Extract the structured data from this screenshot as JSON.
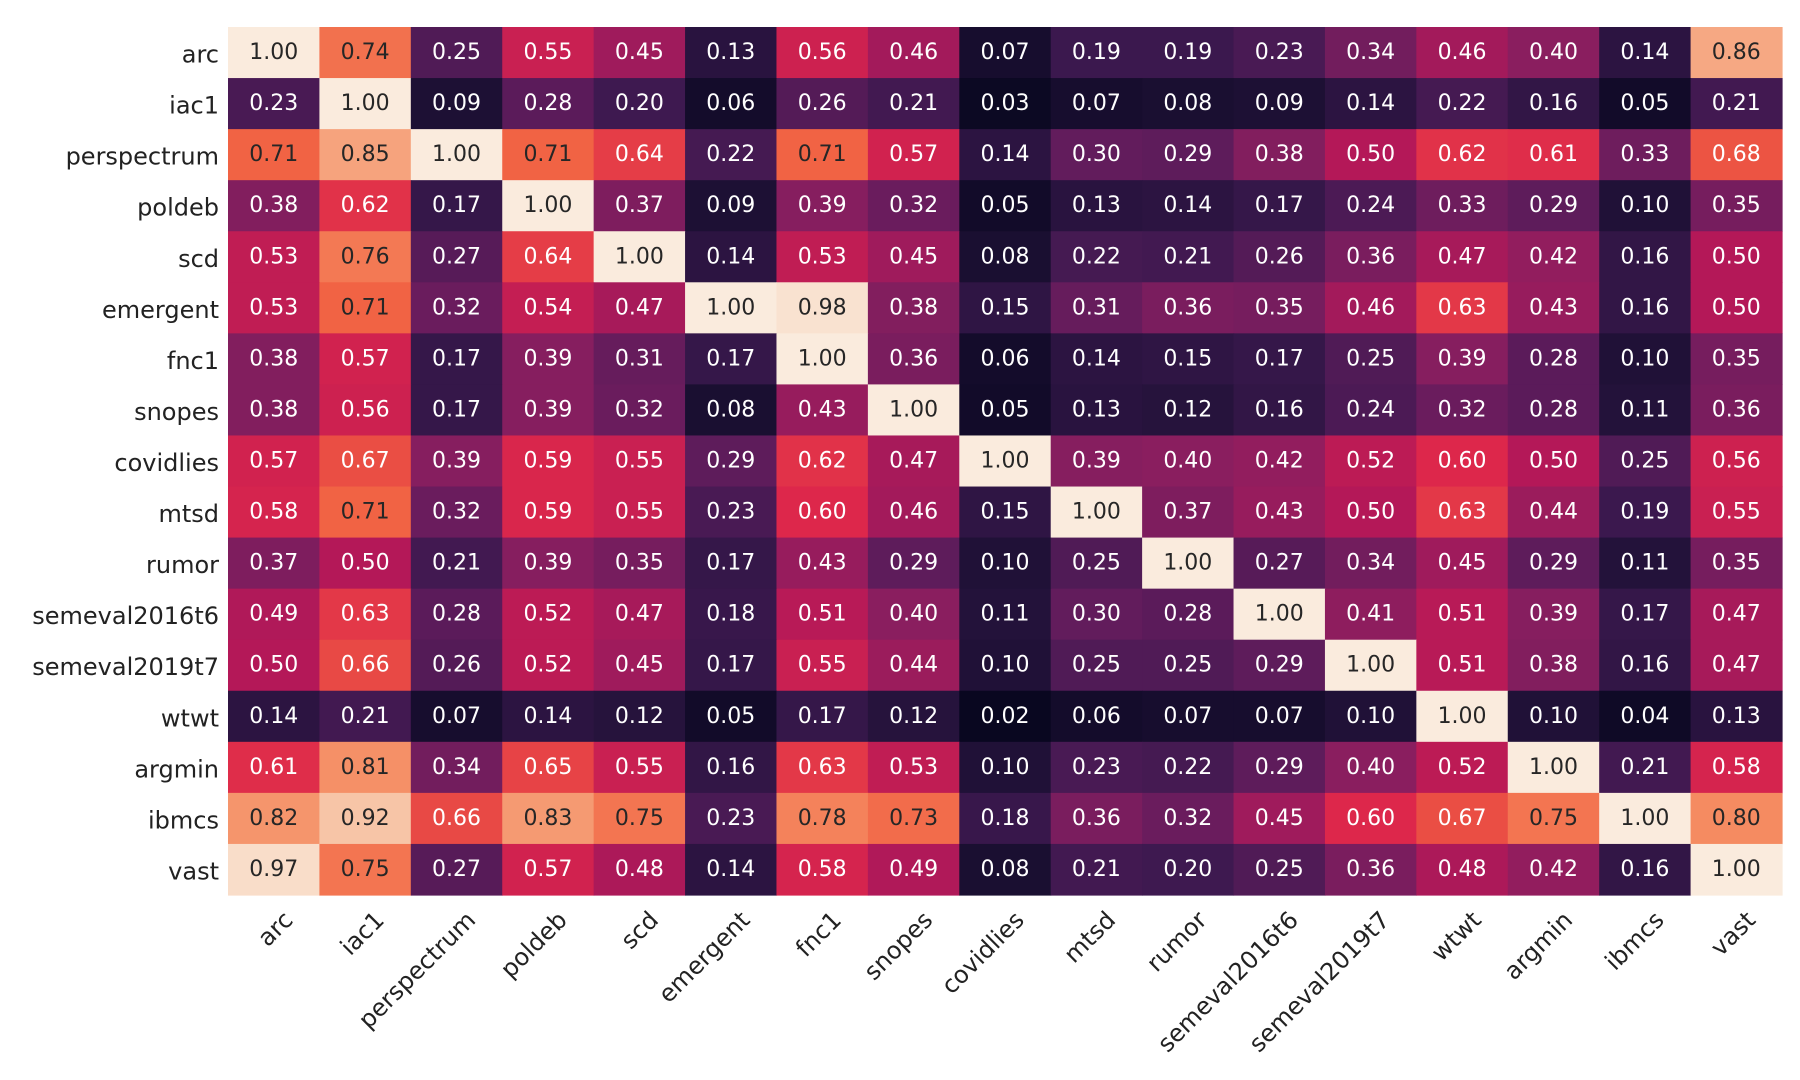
{
  "chart_data": {
    "type": "heatmap",
    "title": "",
    "xlabel": "",
    "ylabel": "",
    "colormap": "rocket",
    "value_range": [
      0,
      1
    ],
    "value_format": "0.00",
    "rows": [
      "arc",
      "iac1",
      "perspectrum",
      "poldeb",
      "scd",
      "emergent",
      "fnc1",
      "snopes",
      "covidlies",
      "mtsd",
      "rumor",
      "semeval2016t6",
      "semeval2019t7",
      "wtwt",
      "argmin",
      "ibmcs",
      "vast"
    ],
    "columns": [
      "arc",
      "iac1",
      "perspectrum",
      "poldeb",
      "scd",
      "emergent",
      "fnc1",
      "snopes",
      "covidlies",
      "mtsd",
      "rumor",
      "semeval2016t6",
      "semeval2019t7",
      "wtwt",
      "argmin",
      "ibmcs",
      "vast"
    ],
    "values": [
      [
        1.0,
        0.74,
        0.25,
        0.55,
        0.45,
        0.13,
        0.56,
        0.46,
        0.07,
        0.19,
        0.19,
        0.23,
        0.34,
        0.46,
        0.4,
        0.14,
        0.86
      ],
      [
        0.23,
        1.0,
        0.09,
        0.28,
        0.2,
        0.06,
        0.26,
        0.21,
        0.03,
        0.07,
        0.08,
        0.09,
        0.14,
        0.22,
        0.16,
        0.05,
        0.21
      ],
      [
        0.71,
        0.85,
        1.0,
        0.71,
        0.64,
        0.22,
        0.71,
        0.57,
        0.14,
        0.3,
        0.29,
        0.38,
        0.5,
        0.62,
        0.61,
        0.33,
        0.68
      ],
      [
        0.38,
        0.62,
        0.17,
        1.0,
        0.37,
        0.09,
        0.39,
        0.32,
        0.05,
        0.13,
        0.14,
        0.17,
        0.24,
        0.33,
        0.29,
        0.1,
        0.35
      ],
      [
        0.53,
        0.76,
        0.27,
        0.64,
        1.0,
        0.14,
        0.53,
        0.45,
        0.08,
        0.22,
        0.21,
        0.26,
        0.36,
        0.47,
        0.42,
        0.16,
        0.5
      ],
      [
        0.53,
        0.71,
        0.32,
        0.54,
        0.47,
        1.0,
        0.98,
        0.38,
        0.15,
        0.31,
        0.36,
        0.35,
        0.46,
        0.63,
        0.43,
        0.16,
        0.5
      ],
      [
        0.38,
        0.57,
        0.17,
        0.39,
        0.31,
        0.17,
        1.0,
        0.36,
        0.06,
        0.14,
        0.15,
        0.17,
        0.25,
        0.39,
        0.28,
        0.1,
        0.35
      ],
      [
        0.38,
        0.56,
        0.17,
        0.39,
        0.32,
        0.08,
        0.43,
        1.0,
        0.05,
        0.13,
        0.12,
        0.16,
        0.24,
        0.32,
        0.28,
        0.11,
        0.36
      ],
      [
        0.57,
        0.67,
        0.39,
        0.59,
        0.55,
        0.29,
        0.62,
        0.47,
        1.0,
        0.39,
        0.4,
        0.42,
        0.52,
        0.6,
        0.5,
        0.25,
        0.56
      ],
      [
        0.58,
        0.71,
        0.32,
        0.59,
        0.55,
        0.23,
        0.6,
        0.46,
        0.15,
        1.0,
        0.37,
        0.43,
        0.5,
        0.63,
        0.44,
        0.19,
        0.55
      ],
      [
        0.37,
        0.5,
        0.21,
        0.39,
        0.35,
        0.17,
        0.43,
        0.29,
        0.1,
        0.25,
        1.0,
        0.27,
        0.34,
        0.45,
        0.29,
        0.11,
        0.35
      ],
      [
        0.49,
        0.63,
        0.28,
        0.52,
        0.47,
        0.18,
        0.51,
        0.4,
        0.11,
        0.3,
        0.28,
        1.0,
        0.41,
        0.51,
        0.39,
        0.17,
        0.47
      ],
      [
        0.5,
        0.66,
        0.26,
        0.52,
        0.45,
        0.17,
        0.55,
        0.44,
        0.1,
        0.25,
        0.25,
        0.29,
        1.0,
        0.51,
        0.38,
        0.16,
        0.47
      ],
      [
        0.14,
        0.21,
        0.07,
        0.14,
        0.12,
        0.05,
        0.17,
        0.12,
        0.02,
        0.06,
        0.07,
        0.07,
        0.1,
        1.0,
        0.1,
        0.04,
        0.13
      ],
      [
        0.61,
        0.81,
        0.34,
        0.65,
        0.55,
        0.16,
        0.63,
        0.53,
        0.1,
        0.23,
        0.22,
        0.29,
        0.4,
        0.52,
        1.0,
        0.21,
        0.58
      ],
      [
        0.82,
        0.92,
        0.66,
        0.83,
        0.75,
        0.23,
        0.78,
        0.73,
        0.18,
        0.36,
        0.32,
        0.45,
        0.6,
        0.67,
        0.75,
        1.0,
        0.8
      ],
      [
        0.97,
        0.75,
        0.27,
        0.57,
        0.48,
        0.14,
        0.58,
        0.49,
        0.08,
        0.21,
        0.2,
        0.25,
        0.36,
        0.48,
        0.42,
        0.16,
        1.0
      ]
    ],
    "colorbar": false,
    "grid": false
  },
  "colors": {
    "background": "#ffffff",
    "label_text": "#222222",
    "cell_text_light": "#ffffff",
    "cell_text_dark": "#262626"
  }
}
